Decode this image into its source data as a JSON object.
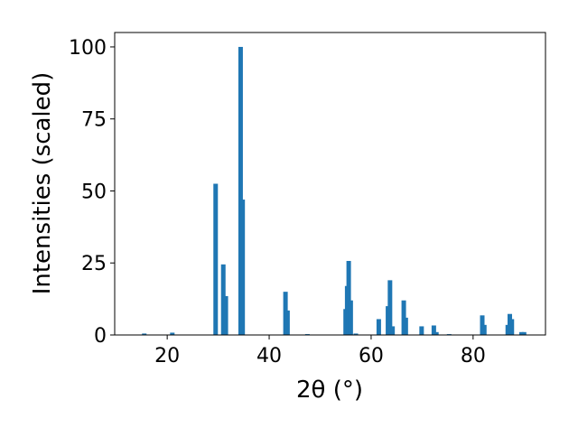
{
  "chart_data": {
    "type": "bar",
    "xlabel": "2θ (°)",
    "ylabel": "Intensities (scaled)",
    "color": "#1f77b4",
    "x": [
      15.5,
      21.0,
      29.5,
      31.0,
      31.5,
      34.4,
      34.8,
      43.2,
      43.6,
      47.5,
      55.0,
      55.3,
      55.6,
      56.0,
      57.0,
      61.5,
      63.3,
      63.7,
      64.2,
      66.4,
      66.8,
      69.9,
      72.3,
      72.8,
      75.3,
      81.8,
      82.2,
      86.8,
      87.2,
      87.6,
      89.5,
      90.0
    ],
    "values": [
      0.5,
      0.8,
      52.5,
      24.5,
      13.5,
      100,
      47,
      15,
      8.5,
      0.3,
      9,
      17,
      25.7,
      12,
      0.5,
      5.5,
      10,
      19,
      3,
      12,
      6,
      3,
      3.3,
      1,
      0.3,
      6.8,
      3.5,
      3.5,
      7.3,
      5.5,
      1,
      1
    ],
    "xlim": [
      9.7,
      94.2
    ],
    "ylim": [
      0,
      105
    ],
    "xticks": [
      20,
      40,
      60,
      80
    ],
    "yticks": [
      0,
      25,
      50,
      75,
      100
    ]
  }
}
